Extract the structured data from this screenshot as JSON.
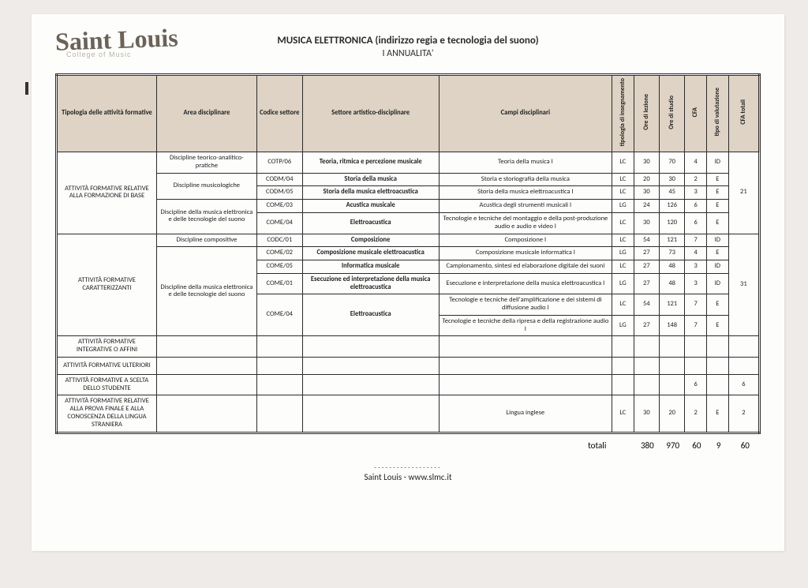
{
  "logo": {
    "main": "Saint Louis",
    "sub": "College of Music"
  },
  "titles": {
    "line1": "MUSICA ELETTRONICA (indirizzo regia e tecnologia del suono)",
    "line2": "I ANNUALITA'"
  },
  "headers": {
    "tipologia": "Tipologia delle attività formative",
    "area": "Area disciplinare",
    "codice": "Codice settore",
    "settore": "Settore artistico-disciplinare",
    "campi": "Campi disciplinari",
    "tip_ins": "tipologia di insegnamento",
    "ore_lez": "Ore di lezione",
    "ore_studio": "Ore di studio",
    "cfa": "CFA",
    "valutazione": "tipo di valutazione",
    "cfa_totali": "CFA totali"
  },
  "groups": [
    {
      "tipologia": "ATTIVITÀ FORMATIVE RELATIVE ALLA FORMAZIONE DI BASE",
      "cfa_totali": "21",
      "rows": [
        {
          "area": "Discipline teorico-analitico-pratiche",
          "area_rowspan": 1,
          "codice": "COTP/06",
          "settore": "Teoria, ritmica e percezione musicale",
          "campi": "Teoria della musica I",
          "tip": "LC",
          "lez": "30",
          "studio": "70",
          "cfa": "4",
          "val": "ID"
        },
        {
          "area": "Discipline musicologiche",
          "area_rowspan": 2,
          "codice": "CODM/04",
          "settore": "Storia della musica",
          "campi": "Storia e storiografia della musica",
          "tip": "LC",
          "lez": "20",
          "studio": "30",
          "cfa": "2",
          "val": "E"
        },
        {
          "codice": "CODM/05",
          "settore": "Storia della musica elettroacustica",
          "campi": "Storia della musica elettroacustica I",
          "tip": "LC",
          "lez": "30",
          "studio": "45",
          "cfa": "3",
          "val": "E"
        },
        {
          "area": "Discipline della musica elettronica e delle tecnologie del suono",
          "area_rowspan": 2,
          "codice": "COME/03",
          "settore": "Acustica musicale",
          "campi": "Acustica degli strumenti musicali I",
          "tip": "LG",
          "lez": "24",
          "studio": "126",
          "cfa": "6",
          "val": "E"
        },
        {
          "codice": "COME/04",
          "settore": "Elettroacustica",
          "campi": "Tecnologie e tecniche del montaggio e della post-produzione audio e audio e video I",
          "tip": "LC",
          "lez": "30",
          "studio": "120",
          "cfa": "6",
          "val": "E"
        }
      ]
    },
    {
      "tipologia": "ATTIVITÀ FORMATIVE CARATTERIZZANTI",
      "cfa_totali": "31",
      "rows": [
        {
          "area": "Discipline compositive",
          "area_rowspan": 1,
          "codice": "CODC/01",
          "settore": "Composizione",
          "campi": "Composizione I",
          "tip": "LC",
          "lez": "54",
          "studio": "121",
          "cfa": "7",
          "val": "ID"
        },
        {
          "area": "Discipline della musica elettronica e delle tecnologie del suono",
          "area_rowspan": 5,
          "codice": "COME/02",
          "settore": "Composizione musicale elettroacustica",
          "campi": "Composizione musicale informatica I",
          "tip": "LG",
          "lez": "27",
          "studio": "73",
          "cfa": "4",
          "val": "E"
        },
        {
          "codice": "COME/05",
          "settore": "Informatica musicale",
          "campi": "Campionamento, sintesi ed elaborazione digitale dei suoni",
          "tip": "LC",
          "lez": "27",
          "studio": "48",
          "cfa": "3",
          "val": "ID"
        },
        {
          "codice": "COME/01",
          "settore": "Esecuzione ed interpretazione della musica elettroacustica",
          "campi": "Esecuzione e interpretazione della musica elettroacustica I",
          "tip": "LG",
          "lez": "27",
          "studio": "48",
          "cfa": "3",
          "val": "ID"
        },
        {
          "codice": "COME/04",
          "codice_rowspan": 2,
          "settore": "Elettroacustica",
          "settore_rowspan": 2,
          "campi": "Tecnologie e tecniche dell'amplificazione e dei sistemi di diffusione audio I",
          "tip": "LC",
          "lez": "54",
          "studio": "121",
          "cfa": "7",
          "val": "E"
        },
        {
          "campi": "Tecnologie e tecniche della ripresa e della registrazione audio I",
          "tip": "LG",
          "lez": "27",
          "studio": "148",
          "cfa": "7",
          "val": "E"
        }
      ]
    }
  ],
  "simple_rows": [
    {
      "tipologia": "ATTIVITÀ FORMATIVE INTEGRATIVE O AFFINI"
    },
    {
      "tipologia": "ATTIVITÀ FORMATIVE ULTERIORI"
    },
    {
      "tipologia": "ATTIVITÀ FORMATIVE A SCELTA DELLO STUDENTE",
      "cfa": "6",
      "cfa_totali": "6"
    },
    {
      "tipologia": "ATTIVITÀ FORMATIVE RELATIVE ALLA PROVA FINALE E ALLA CONOSCENZA DELLA LINGUA STRANIERA",
      "campi": "Lingua inglese",
      "tip": "LC",
      "lez": "30",
      "studio": "20",
      "cfa": "2",
      "val": "E",
      "cfa_totali": "2"
    }
  ],
  "totals": {
    "label": "totali",
    "lez": "380",
    "studio": "970",
    "cfa": "60",
    "val": "9",
    "cfa_totali": "60"
  },
  "footer": {
    "dots": "------------------",
    "text": "Saint Louis  - www.slmc.it"
  }
}
